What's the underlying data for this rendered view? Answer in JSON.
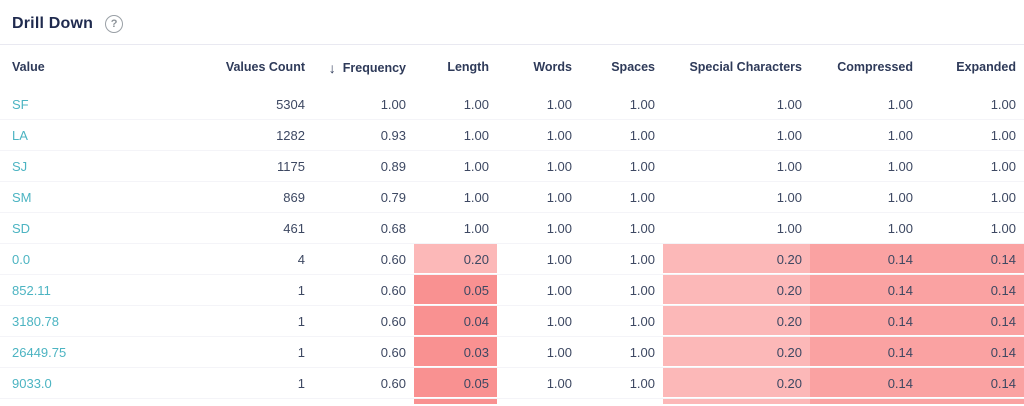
{
  "header": {
    "title": "Drill Down",
    "help_glyph": "?"
  },
  "colors": {
    "accent_teal": "#4cb4c2",
    "header_navy": "#2e3a59",
    "highlight_light": "#fcb8b8",
    "highlight_mid": "#faa2a2",
    "highlight_dark": "#f99191"
  },
  "table": {
    "columns": [
      {
        "label": "Value",
        "align": "left"
      },
      {
        "label": "Values Count",
        "align": "right"
      },
      {
        "label": "Frequency",
        "align": "right",
        "sort": "desc",
        "sort_icon": "↓"
      },
      {
        "label": "Length",
        "align": "right"
      },
      {
        "label": "Words",
        "align": "right"
      },
      {
        "label": "Spaces",
        "align": "right"
      },
      {
        "label": "Special Characters",
        "align": "right"
      },
      {
        "label": "Compressed",
        "align": "right"
      },
      {
        "label": "Expanded",
        "align": "right"
      }
    ],
    "rows": [
      {
        "cells": [
          "SF",
          "5304",
          "1.00",
          "1.00",
          "1.00",
          "1.00",
          "1.00",
          "1.00",
          "1.00"
        ],
        "highlights": [
          null,
          null,
          null,
          null,
          null,
          null,
          null,
          null,
          null
        ]
      },
      {
        "cells": [
          "LA",
          "1282",
          "0.93",
          "1.00",
          "1.00",
          "1.00",
          "1.00",
          "1.00",
          "1.00"
        ],
        "highlights": [
          null,
          null,
          null,
          null,
          null,
          null,
          null,
          null,
          null
        ]
      },
      {
        "cells": [
          "SJ",
          "1175",
          "0.89",
          "1.00",
          "1.00",
          "1.00",
          "1.00",
          "1.00",
          "1.00"
        ],
        "highlights": [
          null,
          null,
          null,
          null,
          null,
          null,
          null,
          null,
          null
        ]
      },
      {
        "cells": [
          "SM",
          "869",
          "0.79",
          "1.00",
          "1.00",
          "1.00",
          "1.00",
          "1.00",
          "1.00"
        ],
        "highlights": [
          null,
          null,
          null,
          null,
          null,
          null,
          null,
          null,
          null
        ]
      },
      {
        "cells": [
          "SD",
          "461",
          "0.68",
          "1.00",
          "1.00",
          "1.00",
          "1.00",
          "1.00",
          "1.00"
        ],
        "highlights": [
          null,
          null,
          null,
          null,
          null,
          null,
          null,
          null,
          null
        ]
      },
      {
        "cells": [
          "0.0",
          "4",
          "0.60",
          "0.20",
          "1.00",
          "1.00",
          "0.20",
          "0.14",
          "0.14"
        ],
        "highlights": [
          null,
          null,
          null,
          "light",
          null,
          null,
          "light",
          "mid",
          "mid"
        ]
      },
      {
        "cells": [
          "852.11",
          "1",
          "0.60",
          "0.05",
          "1.00",
          "1.00",
          "0.20",
          "0.14",
          "0.14"
        ],
        "highlights": [
          null,
          null,
          null,
          "dark",
          null,
          null,
          "light",
          "mid",
          "mid"
        ]
      },
      {
        "cells": [
          "3180.78",
          "1",
          "0.60",
          "0.04",
          "1.00",
          "1.00",
          "0.20",
          "0.14",
          "0.14"
        ],
        "highlights": [
          null,
          null,
          null,
          "dark",
          null,
          null,
          "light",
          "mid",
          "mid"
        ]
      },
      {
        "cells": [
          "26449.75",
          "1",
          "0.60",
          "0.03",
          "1.00",
          "1.00",
          "0.20",
          "0.14",
          "0.14"
        ],
        "highlights": [
          null,
          null,
          null,
          "dark",
          null,
          null,
          "light",
          "mid",
          "mid"
        ]
      },
      {
        "cells": [
          "9033.0",
          "1",
          "0.60",
          "0.05",
          "1.00",
          "1.00",
          "0.20",
          "0.14",
          "0.14"
        ],
        "highlights": [
          null,
          null,
          null,
          "dark",
          null,
          null,
          "light",
          "mid",
          "mid"
        ]
      },
      {
        "partial": true,
        "cells": [
          "",
          "",
          "",
          "",
          "",
          "",
          "",
          "",
          ""
        ],
        "highlights": [
          null,
          null,
          null,
          "dark",
          null,
          null,
          "light",
          "mid",
          "mid"
        ]
      }
    ]
  }
}
